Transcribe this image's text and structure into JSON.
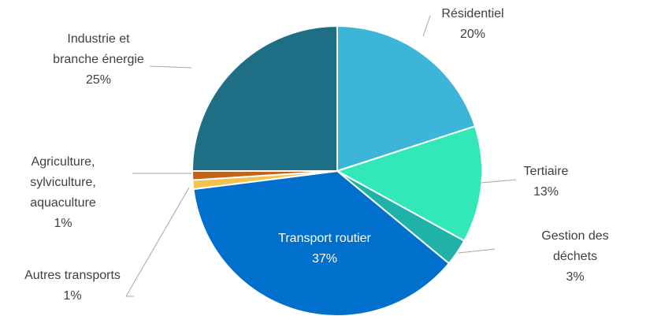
{
  "chart_data": {
    "type": "pie",
    "categories": [
      "Résidentiel",
      "Tertiaire",
      "Gestion des déchets",
      "Transport routier",
      "Autres transports",
      "Agriculture,\nsylviculture,\naquaculture",
      "Industrie et\nbranche énergie"
    ],
    "values": [
      20,
      13,
      3,
      37,
      1,
      1,
      25
    ],
    "value_labels": [
      "20%",
      "13%",
      "3%",
      "37%",
      "1%",
      "1%",
      "25%"
    ],
    "colors": [
      "#3db5d8",
      "#33e8b8",
      "#20b2a8",
      "#0070cc",
      "#f2c14e",
      "#c0651a",
      "#1e6e85"
    ]
  }
}
